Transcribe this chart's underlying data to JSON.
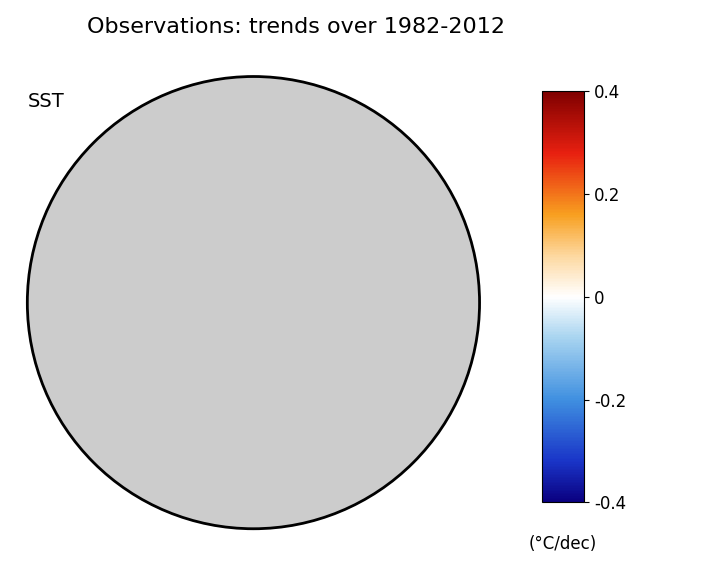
{
  "title": "Observations: trends over 1982-2012",
  "label_sst": "SST",
  "colorbar_label": "(°C/dec)",
  "colorbar_ticks": [
    0.4,
    0.2,
    0,
    -0.2,
    -0.4
  ],
  "vmin": -0.4,
  "vmax": 0.4,
  "title_fontsize": 16,
  "sst_fontsize": 14,
  "colorbar_fontsize": 12,
  "unit_fontsize": 12,
  "background_color": "#ffffff",
  "land_color": "#aaaaaa",
  "ocean_bg_color": "#cccccc",
  "colormap_colors": [
    [
      0.0,
      "#0a0080"
    ],
    [
      0.1,
      "#1a35c8"
    ],
    [
      0.25,
      "#4090e0"
    ],
    [
      0.4,
      "#a8d4f0"
    ],
    [
      0.5,
      "#ffffff"
    ],
    [
      0.6,
      "#fdd8a0"
    ],
    [
      0.7,
      "#f8a020"
    ],
    [
      0.85,
      "#e82010"
    ],
    [
      1.0,
      "#800000"
    ]
  ],
  "fig_width": 7.04,
  "fig_height": 5.71,
  "dpi": 100
}
